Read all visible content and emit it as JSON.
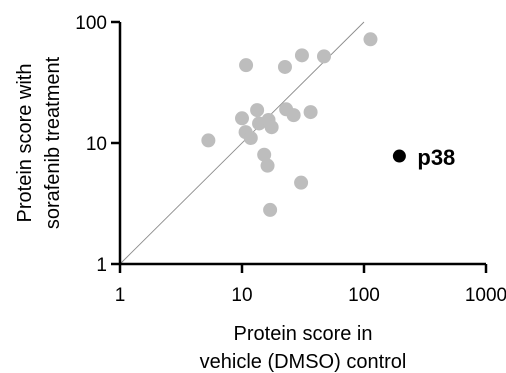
{
  "chart_data": {
    "type": "scatter",
    "title": "",
    "xlabel": [
      "Protein score in",
      "vehicle (DMSO) control"
    ],
    "ylabel": [
      "Protein score with",
      "sorafenib treatment"
    ],
    "xscale": "log",
    "yscale": "log",
    "xlim": [
      1,
      1000
    ],
    "ylim": [
      1,
      100
    ],
    "x_ticks": [
      1,
      10,
      100,
      1000
    ],
    "x_tick_labels": [
      "1",
      "10",
      "100",
      "1000"
    ],
    "y_ticks": [
      1,
      10,
      100
    ],
    "y_tick_labels": [
      "1",
      "10",
      "100"
    ],
    "grid": false,
    "reference_line": "y = x",
    "colors": {
      "points": "#bdbdbd",
      "highlight": "#000000",
      "axes": "#000000",
      "reference": "#8c8c8c"
    },
    "series": [
      {
        "points": [
          {
            "x": 5.3,
            "y": 10.5
          },
          {
            "x": 10.0,
            "y": 16.0
          },
          {
            "x": 10.8,
            "y": 44.0
          },
          {
            "x": 10.7,
            "y": 12.3
          },
          {
            "x": 11.8,
            "y": 11.0
          },
          {
            "x": 13.3,
            "y": 18.7
          },
          {
            "x": 13.8,
            "y": 14.5
          },
          {
            "x": 15.2,
            "y": 8.0
          },
          {
            "x": 16.5,
            "y": 15.5
          },
          {
            "x": 16.2,
            "y": 6.5
          },
          {
            "x": 17.0,
            "y": 2.8
          },
          {
            "x": 17.5,
            "y": 13.5
          },
          {
            "x": 22.5,
            "y": 42.5
          },
          {
            "x": 23.0,
            "y": 19.0
          },
          {
            "x": 26.5,
            "y": 17.0
          },
          {
            "x": 31.0,
            "y": 53.0
          },
          {
            "x": 30.5,
            "y": 4.7
          },
          {
            "x": 36.5,
            "y": 18.0
          },
          {
            "x": 47.0,
            "y": 52.0
          },
          {
            "x": 113.0,
            "y": 72.0
          }
        ]
      }
    ],
    "highlight": {
      "label": "p38",
      "x": 195,
      "y": 7.8
    }
  }
}
